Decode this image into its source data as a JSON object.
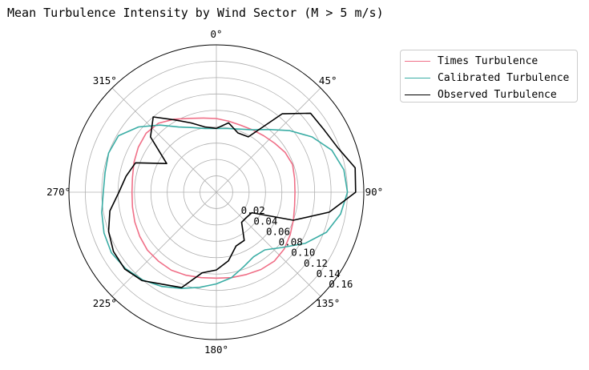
{
  "chart_data": {
    "type": "line",
    "polar": true,
    "title": "Mean Turbulence Intensity by Wind Sector (M > 5 m/s)",
    "angle_unit": "degrees",
    "angle_zero": "north",
    "angle_direction": "clockwise",
    "angle_ticks": [
      "0°",
      "45°",
      "90°",
      "135°",
      "180°",
      "225°",
      "270°",
      "315°"
    ],
    "radial_ticks": [
      "0.02",
      "0.04",
      "0.06",
      "0.08",
      "0.10",
      "0.12",
      "0.14",
      "0.16"
    ],
    "rlim": [
      0,
      0.18
    ],
    "grid": true,
    "legend_position": "upper right, outside plot",
    "x": [
      0,
      10,
      20,
      30,
      40,
      50,
      60,
      70,
      80,
      90,
      100,
      110,
      120,
      130,
      140,
      150,
      160,
      170,
      180,
      190,
      200,
      210,
      220,
      230,
      240,
      250,
      260,
      270,
      280,
      290,
      300,
      310,
      320,
      330,
      340,
      350
    ],
    "series": [
      {
        "name": "Times Turbulence",
        "color": "#f07088",
        "values": [
          0.09,
          0.088,
          0.087,
          0.088,
          0.09,
          0.093,
          0.097,
          0.099,
          0.097,
          0.096,
          0.097,
          0.1,
          0.104,
          0.108,
          0.11,
          0.109,
          0.107,
          0.106,
          0.105,
          0.106,
          0.108,
          0.11,
          0.11,
          0.11,
          0.108,
          0.106,
          0.104,
          0.103,
          0.104,
          0.107,
          0.11,
          0.112,
          0.11,
          0.103,
          0.096,
          0.092
        ]
      },
      {
        "name": "Calibrated Turbulence",
        "color": "#3aada5",
        "values": [
          0.078,
          0.079,
          0.082,
          0.088,
          0.1,
          0.117,
          0.135,
          0.15,
          0.158,
          0.16,
          0.154,
          0.143,
          0.125,
          0.105,
          0.092,
          0.091,
          0.097,
          0.106,
          0.112,
          0.118,
          0.125,
          0.133,
          0.14,
          0.145,
          0.148,
          0.146,
          0.142,
          0.138,
          0.138,
          0.14,
          0.138,
          0.124,
          0.107,
          0.092,
          0.084,
          0.079
        ]
      },
      {
        "name": "Observed Turbulence",
        "color": "#000000",
        "values": [
          0.078,
          0.086,
          0.077,
          0.078,
          0.125,
          0.15,
          0.152,
          0.158,
          0.172,
          0.17,
          0.14,
          0.1,
          0.05,
          0.048,
          0.048,
          0.068,
          0.07,
          0.085,
          0.095,
          0.1,
          0.124,
          0.13,
          0.141,
          0.146,
          0.145,
          0.14,
          0.132,
          0.119,
          0.112,
          0.105,
          0.07,
          0.105,
          0.12,
          0.102,
          0.09,
          0.081
        ]
      }
    ]
  }
}
